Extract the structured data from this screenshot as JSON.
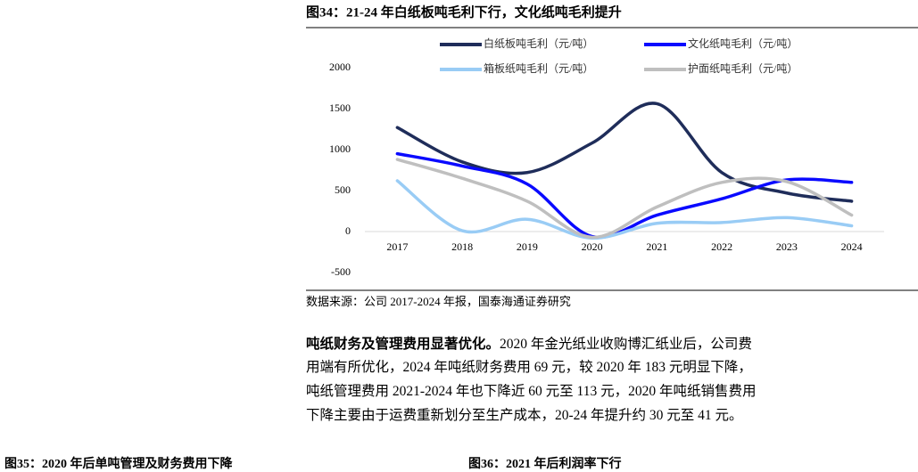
{
  "chart_data": {
    "type": "line",
    "title": "图34：21-24 年白纸板吨毛利下行，文化纸吨毛利提升",
    "categories": [
      "2017",
      "2018",
      "2019",
      "2020",
      "2021",
      "2022",
      "2023",
      "2024"
    ],
    "series": [
      {
        "name": "白纸板吨毛利（元/吨）",
        "color": "#1f2d5a",
        "values": [
          1270,
          850,
          720,
          1080,
          1560,
          720,
          470,
          370
        ]
      },
      {
        "name": "文化纸吨毛利（元/吨）",
        "color": "#0a0aff",
        "values": [
          950,
          800,
          580,
          -60,
          200,
          400,
          630,
          600
        ]
      },
      {
        "name": "箱板纸吨毛利（元/吨）",
        "color": "#99ccf5",
        "values": [
          620,
          10,
          150,
          -80,
          100,
          110,
          170,
          70
        ]
      },
      {
        "name": "护面纸吨毛利（元/吨）",
        "color": "#bfbfbf",
        "values": [
          880,
          650,
          370,
          -70,
          300,
          600,
          610,
          200
        ]
      }
    ],
    "ylim": [
      -500,
      2000
    ],
    "yticks": [
      -500,
      0,
      500,
      1000,
      1500,
      2000
    ],
    "source": "数据来源：公司 2017-2024 年报，国泰海通证券研究"
  },
  "paragraph": {
    "lead": "吨纸财务及管理费用显著优化。",
    "lines": [
      "2020 年金光纸业收购博汇纸业后，公司费",
      "用端有所优化，2024 年吨纸财务费用 69 元，较 2020 年 183 元明显下降，",
      "吨纸管理费用 2021-2024 年也下降近 60 元至 113 元，2020 年吨纸销售费用",
      "下降主要由于运费重新划分至生产成本，20-24 年提升约 30 元至 41 元。"
    ]
  },
  "captions": [
    "图35：2020 年后单吨管理及财务费用下降",
    "图36：2021 年后利润率下行"
  ]
}
